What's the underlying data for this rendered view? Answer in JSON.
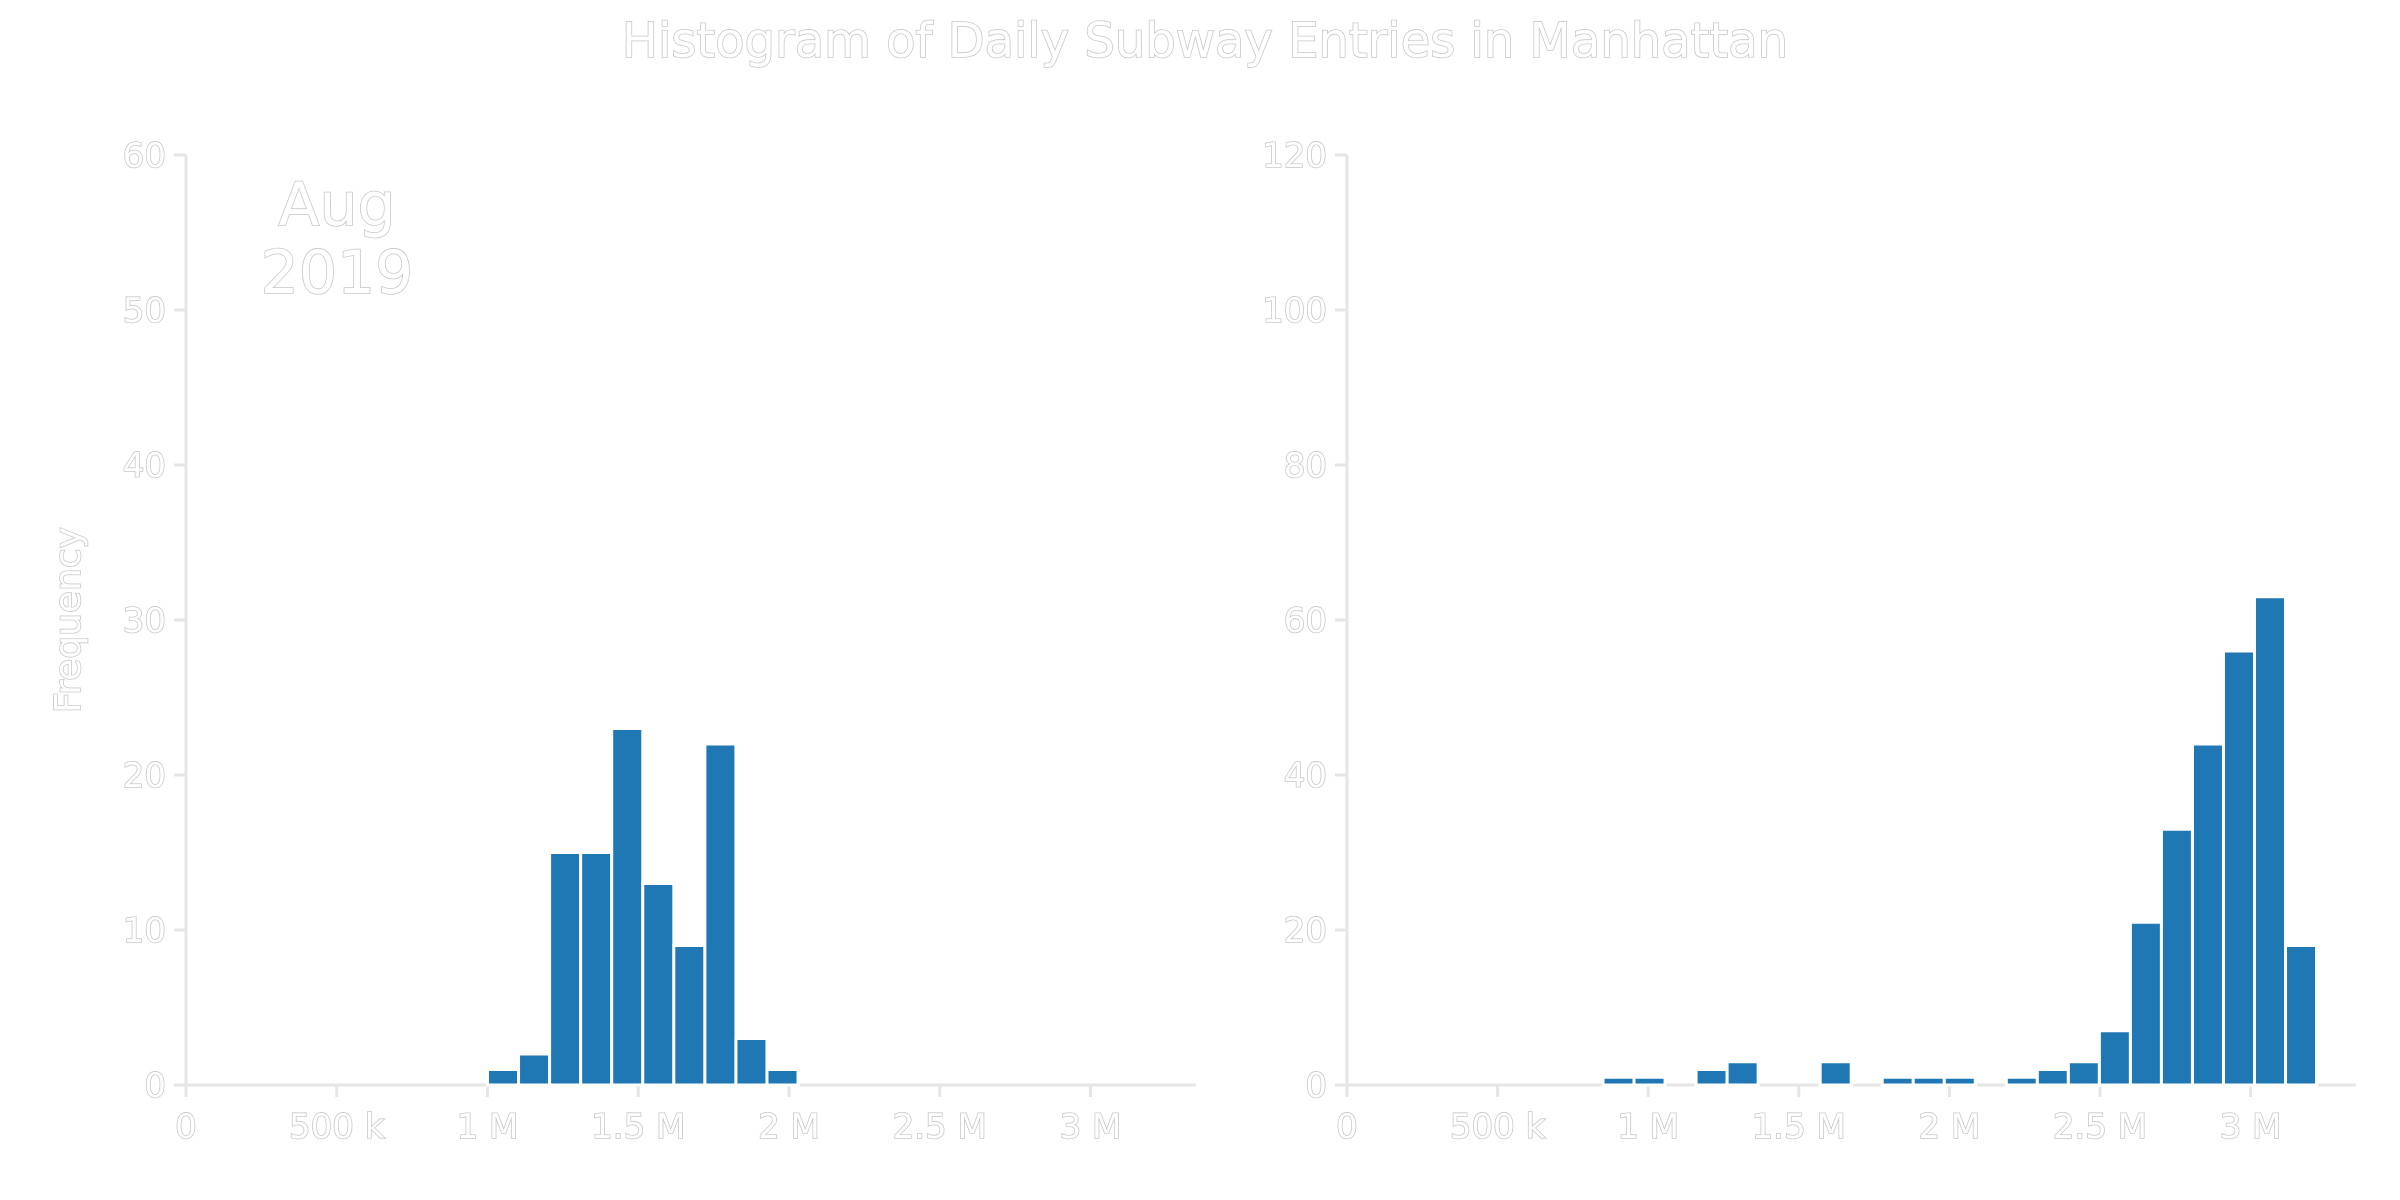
{
  "title": "Histogram of Daily Subway Entries in Manhattan",
  "chart_data": [
    {
      "type": "bar",
      "panel": "left",
      "annotation": [
        "Aug",
        "2019"
      ],
      "title": "",
      "xlabel": "",
      "ylabel": "Frequency",
      "xlim": [
        0,
        3350000
      ],
      "ylim": [
        0,
        60
      ],
      "x_ticks": [
        0,
        500000,
        1000000,
        1500000,
        2000000,
        2500000,
        3000000
      ],
      "x_tick_labels": [
        "0",
        "500 k",
        "1 M",
        "1.5 M",
        "2 M",
        "2.5 M",
        "3 M"
      ],
      "y_ticks": [
        0,
        10,
        20,
        30,
        40,
        50,
        60
      ],
      "y_tick_labels": [
        "0",
        "10",
        "20",
        "30",
        "40",
        "50",
        "60"
      ],
      "bin_width": 103000,
      "bins": [
        {
          "x": 1000000,
          "count": 1
        },
        {
          "x": 1103000,
          "count": 2
        },
        {
          "x": 1206000,
          "count": 15
        },
        {
          "x": 1309000,
          "count": 15
        },
        {
          "x": 1412000,
          "count": 23
        },
        {
          "x": 1515000,
          "count": 13
        },
        {
          "x": 1618000,
          "count": 9
        },
        {
          "x": 1721000,
          "count": 22
        },
        {
          "x": 1824000,
          "count": 3
        },
        {
          "x": 1927000,
          "count": 1
        }
      ]
    },
    {
      "type": "bar",
      "panel": "right",
      "annotation": [],
      "title": "",
      "xlabel": "",
      "ylabel": "",
      "xlim": [
        0,
        3350000
      ],
      "ylim": [
        0,
        120
      ],
      "x_ticks": [
        0,
        500000,
        1000000,
        1500000,
        2000000,
        2500000,
        3000000
      ],
      "x_tick_labels": [
        "0",
        "500 k",
        "1 M",
        "1.5 M",
        "2 M",
        "2.5 M",
        "3 M"
      ],
      "y_ticks": [
        0,
        20,
        40,
        60,
        80,
        100,
        120
      ],
      "y_tick_labels": [
        "0",
        "20",
        "40",
        "60",
        "80",
        "100",
        "120"
      ],
      "bin_width": 103000,
      "bins": [
        {
          "x": 850000,
          "count": 1
        },
        {
          "x": 953000,
          "count": 1
        },
        {
          "x": 1159000,
          "count": 2
        },
        {
          "x": 1262000,
          "count": 3
        },
        {
          "x": 1571000,
          "count": 3
        },
        {
          "x": 1777000,
          "count": 1
        },
        {
          "x": 1880000,
          "count": 1
        },
        {
          "x": 1983000,
          "count": 1
        },
        {
          "x": 2189000,
          "count": 1
        },
        {
          "x": 2292000,
          "count": 2
        },
        {
          "x": 2395000,
          "count": 3
        },
        {
          "x": 2498000,
          "count": 7
        },
        {
          "x": 2601000,
          "count": 21
        },
        {
          "x": 2704000,
          "count": 33
        },
        {
          "x": 2807000,
          "count": 44
        },
        {
          "x": 2910000,
          "count": 56
        },
        {
          "x": 3013000,
          "count": 63
        },
        {
          "x": 3116000,
          "count": 18
        }
      ]
    }
  ]
}
